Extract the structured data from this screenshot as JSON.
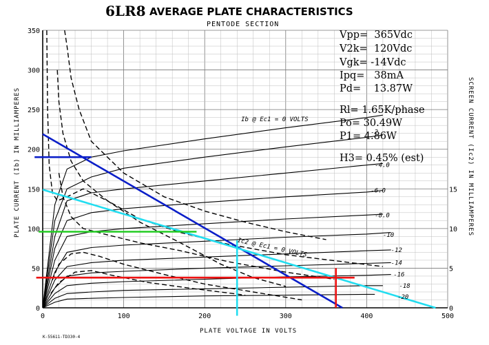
{
  "chart_data": {
    "type": "line",
    "title": "AVERAGE PLATE CHARACTERISTICS",
    "title_tube": "6LR8",
    "subtitle": "PENTODE SECTION",
    "xlabel": "PLATE VOLTAGE IN VOLTS",
    "ylabel": "PLATE CURRENT (Ib) IN MILLIAMPERES",
    "y2label": "SCREEN CURRENT (Ic2) IN MILLIAMPERES",
    "xlim": [
      0,
      500
    ],
    "ylim": [
      0,
      350
    ],
    "y2lim": [
      0,
      35
    ],
    "x_ticks": [
      "0",
      "100",
      "200",
      "300",
      "400",
      "500"
    ],
    "y_ticks": [
      "0",
      "50",
      "100",
      "150",
      "200",
      "250",
      "300",
      "350"
    ],
    "y2_ticks": [
      "0",
      "5",
      "10",
      "15"
    ],
    "grid": true,
    "plate_curve_labels": [
      "Ib @ Ec1 = 0 VOLTS",
      "-2",
      "-4.0",
      "-6.0",
      "-8.0",
      "-10",
      "-12",
      "-14",
      "-16",
      "-18",
      "-20"
    ],
    "plate_curves": [
      {
        "ec1": "0",
        "points": [
          [
            0,
            0
          ],
          [
            15,
            130
          ],
          [
            30,
            175
          ],
          [
            60,
            190
          ],
          [
            100,
            198
          ],
          [
            200,
            213
          ],
          [
            300,
            227
          ],
          [
            400,
            240
          ],
          [
            420,
            243
          ]
        ]
      },
      {
        "ec1": "-2",
        "points": [
          [
            0,
            0
          ],
          [
            15,
            110
          ],
          [
            30,
            150
          ],
          [
            60,
            165
          ],
          [
            100,
            176
          ],
          [
            200,
            190
          ],
          [
            300,
            203
          ],
          [
            400,
            215
          ],
          [
            420,
            218
          ]
        ]
      },
      {
        "ec1": "-4.0",
        "points": [
          [
            0,
            0
          ],
          [
            15,
            90
          ],
          [
            30,
            135
          ],
          [
            60,
            145
          ],
          [
            100,
            150
          ],
          [
            200,
            160
          ],
          [
            300,
            170
          ],
          [
            400,
            180
          ],
          [
            420,
            182
          ]
        ]
      },
      {
        "ec1": "-6.0",
        "points": [
          [
            0,
            0
          ],
          [
            15,
            75
          ],
          [
            30,
            110
          ],
          [
            60,
            120
          ],
          [
            100,
            125
          ],
          [
            200,
            133
          ],
          [
            300,
            140
          ],
          [
            400,
            146
          ],
          [
            420,
            148
          ]
        ]
      },
      {
        "ec1": "-8.0",
        "points": [
          [
            0,
            0
          ],
          [
            15,
            60
          ],
          [
            30,
            90
          ],
          [
            60,
            96
          ],
          [
            100,
            100
          ],
          [
            200,
            106
          ],
          [
            300,
            112
          ],
          [
            400,
            117
          ],
          [
            420,
            118
          ]
        ]
      },
      {
        "ec1": "-10",
        "points": [
          [
            0,
            0
          ],
          [
            15,
            45
          ],
          [
            30,
            70
          ],
          [
            60,
            76
          ],
          [
            100,
            79
          ],
          [
            200,
            84
          ],
          [
            300,
            89
          ],
          [
            400,
            93
          ],
          [
            430,
            95
          ]
        ]
      },
      {
        "ec1": "-12",
        "points": [
          [
            0,
            0
          ],
          [
            15,
            35
          ],
          [
            30,
            52
          ],
          [
            60,
            57
          ],
          [
            100,
            60
          ],
          [
            200,
            64
          ],
          [
            300,
            68
          ],
          [
            400,
            72
          ],
          [
            430,
            73
          ]
        ]
      },
      {
        "ec1": "-14",
        "points": [
          [
            0,
            0
          ],
          [
            15,
            25
          ],
          [
            30,
            40
          ],
          [
            60,
            44
          ],
          [
            100,
            46
          ],
          [
            200,
            50
          ],
          [
            300,
            53
          ],
          [
            400,
            56
          ],
          [
            430,
            57
          ]
        ]
      },
      {
        "ec1": "-16",
        "points": [
          [
            0,
            0
          ],
          [
            15,
            18
          ],
          [
            30,
            28
          ],
          [
            60,
            31
          ],
          [
            100,
            33
          ],
          [
            200,
            36
          ],
          [
            300,
            39
          ],
          [
            400,
            41
          ],
          [
            430,
            42
          ]
        ]
      },
      {
        "ec1": "-18",
        "points": [
          [
            0,
            0
          ],
          [
            15,
            12
          ],
          [
            30,
            18
          ],
          [
            60,
            20
          ],
          [
            100,
            22
          ],
          [
            200,
            24
          ],
          [
            300,
            26
          ],
          [
            400,
            28
          ],
          [
            420,
            28
          ]
        ]
      },
      {
        "ec1": "-20",
        "points": [
          [
            0,
            0
          ],
          [
            15,
            7
          ],
          [
            30,
            11
          ],
          [
            60,
            12
          ],
          [
            100,
            13
          ],
          [
            200,
            15
          ],
          [
            300,
            16
          ],
          [
            400,
            17
          ],
          [
            410,
            17
          ]
        ]
      }
    ],
    "screen_curve_label": "Ic2 @ Ec1 = 0 VOLTS",
    "screen_curves": [
      {
        "points": [
          [
            27,
            350
          ],
          [
            30,
            330
          ],
          [
            35,
            290
          ],
          [
            45,
            250
          ],
          [
            60,
            210
          ],
          [
            100,
            170
          ],
          [
            150,
            140
          ],
          [
            200,
            122
          ],
          [
            250,
            108
          ],
          [
            300,
            96
          ],
          [
            350,
            86
          ]
        ]
      },
      {
        "points": [
          [
            18,
            300
          ],
          [
            20,
            260
          ],
          [
            25,
            220
          ],
          [
            35,
            185
          ],
          [
            50,
            160
          ],
          [
            80,
            135
          ],
          [
            120,
            112
          ],
          [
            170,
            95
          ],
          [
            230,
            80
          ],
          [
            300,
            67
          ],
          [
            380,
            57
          ],
          [
            420,
            52
          ]
        ]
      },
      {
        "points": [
          [
            20,
            170
          ],
          [
            25,
            140
          ],
          [
            35,
            115
          ],
          [
            50,
            100
          ],
          [
            80,
            92
          ],
          [
            120,
            82
          ],
          [
            170,
            72
          ],
          [
            230,
            58
          ],
          [
            300,
            45
          ],
          [
            360,
            36
          ]
        ]
      },
      {
        "points": [
          [
            5,
            350
          ],
          [
            6,
            250
          ],
          [
            8,
            180
          ],
          [
            12,
            145
          ],
          [
            18,
            135
          ],
          [
            30,
            140
          ],
          [
            50,
            150
          ],
          [
            80,
            135
          ],
          [
            120,
            108
          ],
          [
            170,
            82
          ],
          [
            220,
            55
          ],
          [
            260,
            38
          ],
          [
            300,
            27
          ]
        ]
      },
      {
        "points": [
          [
            12,
            35
          ],
          [
            20,
            55
          ],
          [
            35,
            68
          ],
          [
            50,
            70
          ],
          [
            70,
            65
          ],
          [
            100,
            55
          ],
          [
            150,
            42
          ],
          [
            200,
            30
          ],
          [
            260,
            20
          ],
          [
            320,
            10
          ]
        ]
      },
      {
        "points": [
          [
            10,
            18
          ],
          [
            20,
            32
          ],
          [
            40,
            45
          ],
          [
            60,
            47
          ],
          [
            90,
            40
          ],
          [
            130,
            32
          ],
          [
            180,
            25
          ],
          [
            250,
            16
          ]
        ]
      }
    ],
    "operating_params": [
      "Vpp=  365Vdc",
      "V2k=  120Vdc",
      "Vgk= -14Vdc",
      "Ipq=   38mA",
      "Pd=    13.87W",
      "Rl= 1.65K/phase",
      "Po= 30.49W",
      "P1= 4.86W",
      "H3= 0.45% (est)"
    ],
    "overlay_lines": [
      {
        "name": "load-line-dark-blue",
        "color": "#0a1ec8",
        "points": [
          [
            0,
            219
          ],
          [
            370,
            0
          ]
        ]
      },
      {
        "name": "load-line-cyan",
        "color": "#22ddf0",
        "points": [
          [
            0,
            149
          ],
          [
            485,
            0
          ]
        ]
      },
      {
        "name": "marker-blue-horizontal",
        "color": "#0a1ec8",
        "points": [
          [
            -10,
            190
          ],
          [
            60,
            190
          ]
        ]
      },
      {
        "name": "marker-green-horizontal",
        "color": "#22cc22",
        "points": [
          [
            -5,
            96
          ],
          [
            190,
            96
          ]
        ]
      },
      {
        "name": "marker-red-horizontal",
        "color": "#ee1111",
        "points": [
          [
            -8,
            38
          ],
          [
            385,
            38
          ]
        ]
      },
      {
        "name": "marker-red-vertical",
        "color": "#ee1111",
        "points": [
          [
            362,
            50
          ],
          [
            362,
            0
          ]
        ]
      },
      {
        "name": "marker-cyan-vertical",
        "color": "#22ddf0",
        "points": [
          [
            240,
            85
          ],
          [
            240,
            -10
          ]
        ]
      }
    ],
    "footnote": "K-55611-TD330-4"
  }
}
